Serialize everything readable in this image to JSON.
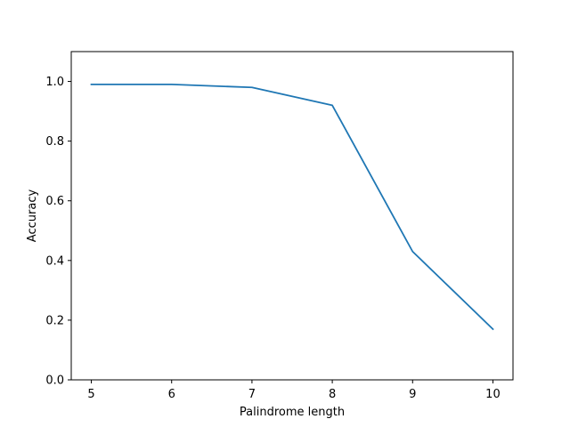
{
  "chart_data": {
    "type": "line",
    "title": "",
    "xlabel": "Palindrome length",
    "ylabel": "Accuracy",
    "x": [
      5,
      6,
      7,
      8,
      9,
      10
    ],
    "series": [
      {
        "values": [
          0.99,
          0.99,
          0.98,
          0.92,
          0.43,
          0.17
        ],
        "color": "#1f77b4"
      }
    ],
    "xlim": [
      4.75,
      10.25
    ],
    "ylim": [
      0.0,
      1.1
    ],
    "x_ticks": [
      "5",
      "6",
      "7",
      "8",
      "9",
      "10"
    ],
    "y_ticks": [
      "0.0",
      "0.2",
      "0.4",
      "0.6",
      "0.8",
      "1.0"
    ],
    "grid": false,
    "legend": "none"
  }
}
